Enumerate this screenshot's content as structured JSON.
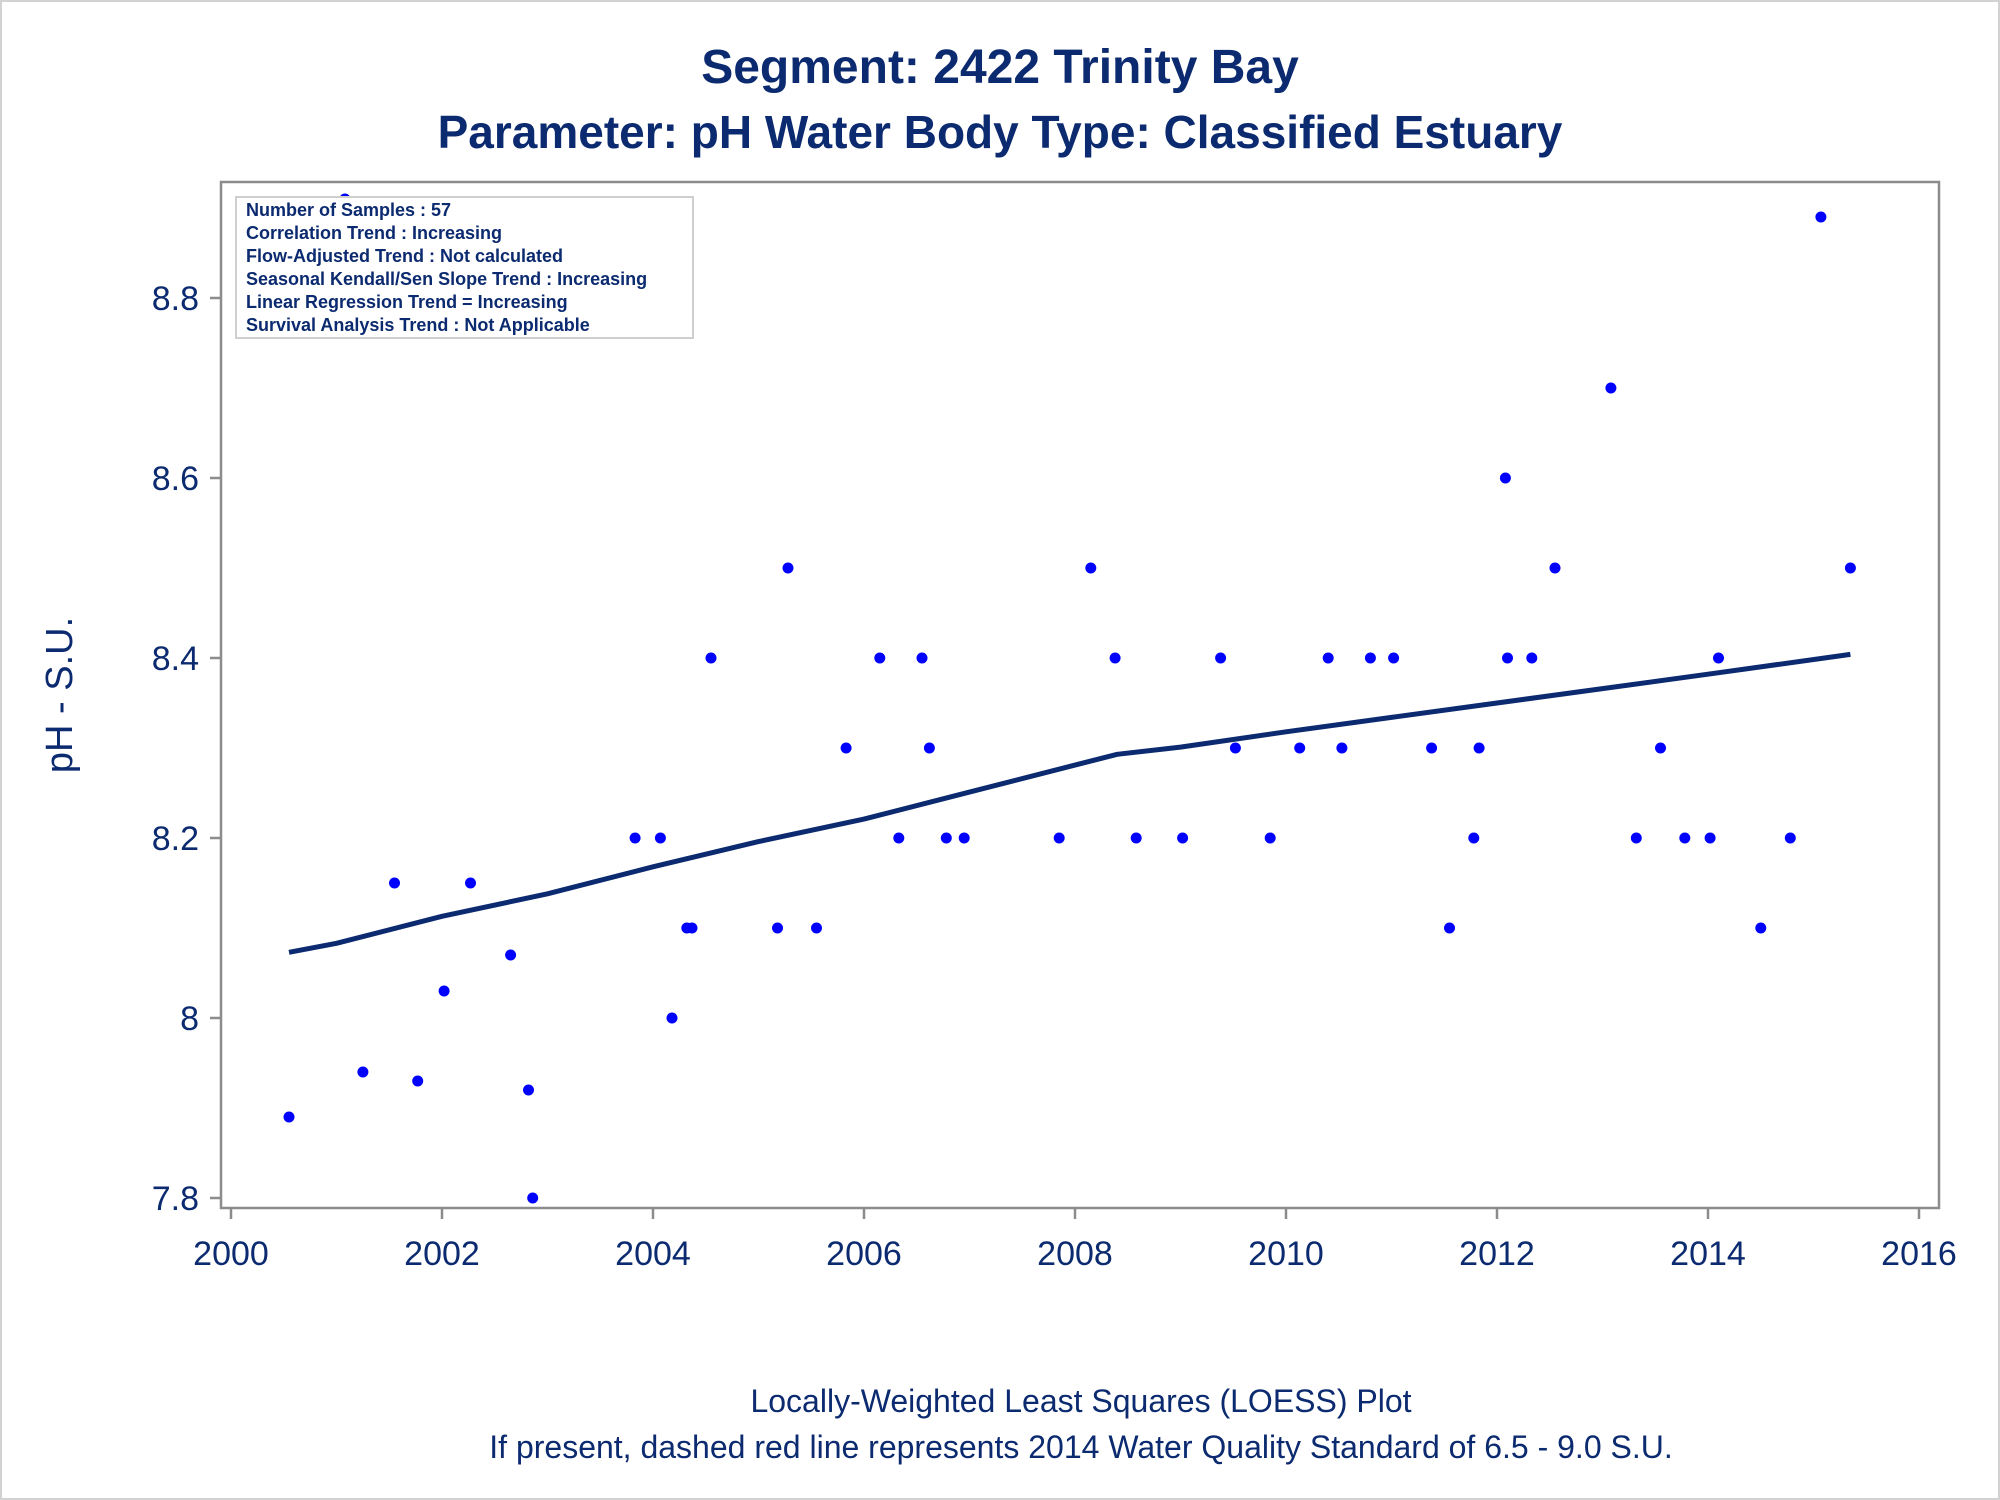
{
  "chart_data": {
    "type": "scatter",
    "title": "Segment: 2422  Trinity Bay",
    "subtitle": "Parameter: pH   Water Body Type: Classified Estuary",
    "xlabel": "",
    "ylabel": "pH - S.U.",
    "xlim": [
      2000,
      2016
    ],
    "ylim": [
      7.8,
      8.92
    ],
    "x_ticks": [
      "2000",
      "2002",
      "2004",
      "2006",
      "2008",
      "2010",
      "2012",
      "2014",
      "2016"
    ],
    "y_ticks": [
      "7.8",
      "8",
      "8.2",
      "8.4",
      "8.6",
      "8.8"
    ],
    "grid": false,
    "info_box": [
      "Number of Samples : 57",
      "Correlation Trend : Increasing",
      "Flow-Adjusted Trend : Not calculated",
      "Seasonal Kendall/Sen Slope Trend : Increasing",
      "Linear Regression Trend = Increasing",
      "Survival Analysis Trend : Not Applicable"
    ],
    "footnotes": [
      "Locally-Weighted Least Squares (LOESS) Plot",
      "If present, dashed red line represents 2014 Water Quality Standard of 6.5 - 9.0 S.U."
    ],
    "point_color": "#0000ff",
    "line_color": "#0b2a6f",
    "series": [
      {
        "kind": "points",
        "x": [
          2000.55,
          2001.08,
          2001.25,
          2001.55,
          2001.77,
          2002.02,
          2002.27,
          2002.65,
          2002.82,
          2002.86,
          2003.83,
          2004.07,
          2004.18,
          2004.32,
          2004.37,
          2004.55,
          2005.18,
          2005.28,
          2005.55,
          2005.83,
          2006.15,
          2006.33,
          2006.55,
          2006.62,
          2006.78,
          2006.95,
          2007.85,
          2008.15,
          2008.38,
          2008.58,
          2009.02,
          2009.38,
          2009.52,
          2009.85,
          2010.13,
          2010.4,
          2010.53,
          2010.8,
          2011.02,
          2011.38,
          2011.55,
          2011.78,
          2011.83,
          2012.08,
          2012.1,
          2012.33,
          2012.55,
          2013.08,
          2013.32,
          2013.55,
          2013.78,
          2014.02,
          2014.1,
          2014.5,
          2014.78,
          2015.07,
          2015.35
        ],
        "y": [
          7.89,
          8.91,
          7.94,
          8.15,
          7.93,
          8.03,
          8.15,
          8.07,
          7.92,
          7.8,
          8.2,
          8.2,
          8.0,
          8.1,
          8.1,
          8.4,
          8.1,
          8.5,
          8.1,
          8.3,
          8.4,
          8.2,
          8.4,
          8.3,
          8.2,
          8.2,
          8.2,
          8.5,
          8.4,
          8.2,
          8.2,
          8.4,
          8.3,
          8.2,
          8.3,
          8.4,
          8.3,
          8.4,
          8.4,
          8.3,
          8.1,
          8.2,
          8.3,
          8.6,
          8.4,
          8.4,
          8.5,
          8.7,
          8.2,
          8.3,
          8.2,
          8.2,
          8.4,
          8.1,
          8.2,
          8.89,
          8.5
        ]
      },
      {
        "kind": "loess",
        "x": [
          2000.55,
          2001.0,
          2002.0,
          2003.0,
          2004.0,
          2005.0,
          2006.0,
          2007.0,
          2008.0,
          2008.4,
          2009.0,
          2010.0,
          2011.0,
          2012.0,
          2013.0,
          2014.0,
          2015.35
        ],
        "y": [
          8.073,
          8.083,
          8.113,
          8.138,
          8.168,
          8.196,
          8.221,
          8.251,
          8.281,
          8.293,
          8.301,
          8.318,
          8.334,
          8.35,
          8.366,
          8.382,
          8.404
        ]
      }
    ]
  }
}
